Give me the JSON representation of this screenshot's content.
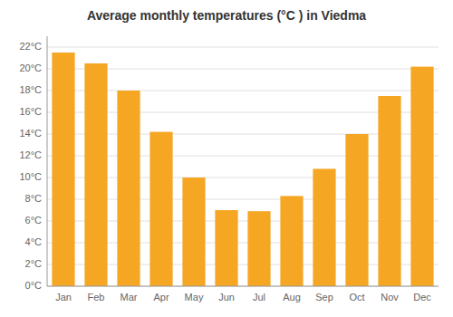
{
  "chart_data": {
    "type": "bar",
    "title": "Average monthly temperatures (°C ) in Viedma",
    "categories": [
      "Jan",
      "Feb",
      "Mar",
      "Apr",
      "May",
      "Jun",
      "Jul",
      "Aug",
      "Sep",
      "Oct",
      "Nov",
      "Dec"
    ],
    "values": [
      21.5,
      20.5,
      18.0,
      14.2,
      10.0,
      7.0,
      6.9,
      8.3,
      10.8,
      14.0,
      17.5,
      20.2
    ],
    "color": "#F5A623",
    "ylim": [
      0,
      23
    ],
    "yticks": [
      {
        "value": 0,
        "label": "0°C"
      },
      {
        "value": 2,
        "label": "2°C"
      },
      {
        "value": 4,
        "label": "4°C"
      },
      {
        "value": 6,
        "label": "6°C"
      },
      {
        "value": 8,
        "label": "8°C"
      },
      {
        "value": 10,
        "label": "10°C"
      },
      {
        "value": 12,
        "label": "12°C"
      },
      {
        "value": 14,
        "label": "14°C"
      },
      {
        "value": 16,
        "label": "16°C"
      },
      {
        "value": 18,
        "label": "18°C"
      },
      {
        "value": 20,
        "label": "20°C"
      },
      {
        "value": 22,
        "label": "22°C"
      }
    ],
    "grid": true
  }
}
